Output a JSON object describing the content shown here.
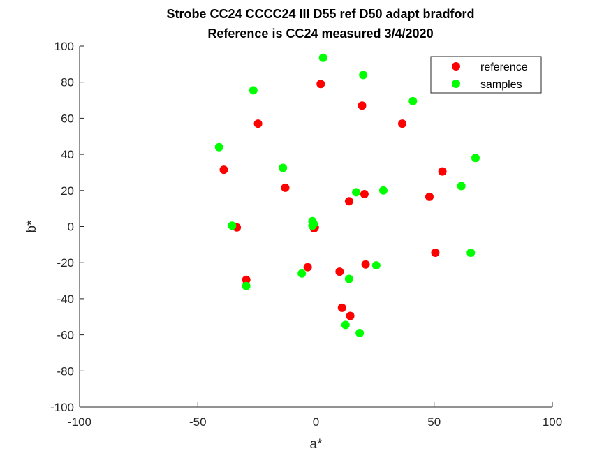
{
  "chart_data": {
    "type": "scatter",
    "title": "Strobe CC24 CCCC24 III D55 ref D50 adapt bradford",
    "subtitle": "Reference is CC24 measured 3/4/2020",
    "xlabel": "a*",
    "ylabel": "b*",
    "xlim": [
      -100,
      100
    ],
    "ylim": [
      -100,
      100
    ],
    "xticks": [
      -100,
      -50,
      0,
      50,
      100
    ],
    "yticks": [
      -100,
      -80,
      -60,
      -40,
      -20,
      0,
      20,
      40,
      60,
      80,
      100
    ],
    "grid": false,
    "legend_position": "top-right",
    "series": [
      {
        "name": "reference",
        "color": "#ff0000",
        "points": [
          [
            2,
            79
          ],
          [
            19.5,
            67
          ],
          [
            -24.5,
            57
          ],
          [
            36.5,
            57
          ],
          [
            -39,
            31.5
          ],
          [
            53.5,
            30.5
          ],
          [
            -13,
            21.5
          ],
          [
            48,
            16.5
          ],
          [
            20.5,
            18
          ],
          [
            14,
            14
          ],
          [
            -33.5,
            -0.5
          ],
          [
            -0.5,
            -0.5
          ],
          [
            -0.8,
            -1
          ],
          [
            50.5,
            -14.5
          ],
          [
            21,
            -21
          ],
          [
            -3.5,
            -22.5
          ],
          [
            10,
            -25
          ],
          [
            -29.5,
            -29.5
          ],
          [
            11,
            -45
          ],
          [
            14.5,
            -49.5
          ]
        ]
      },
      {
        "name": "samples",
        "color": "#00ff00",
        "points": [
          [
            3,
            93.5
          ],
          [
            20,
            84
          ],
          [
            -26.5,
            75.5
          ],
          [
            41,
            69.5
          ],
          [
            -41,
            44
          ],
          [
            67.5,
            38
          ],
          [
            -14,
            32.5
          ],
          [
            61.5,
            22.5
          ],
          [
            28.5,
            20
          ],
          [
            17,
            19
          ],
          [
            -35.5,
            0.5
          ],
          [
            -1.5,
            3
          ],
          [
            -1,
            1.5
          ],
          [
            -1.5,
            0.5
          ],
          [
            65.5,
            -14.5
          ],
          [
            25.5,
            -21.5
          ],
          [
            -6,
            -26
          ],
          [
            14,
            -29
          ],
          [
            -29.5,
            -33
          ],
          [
            12.5,
            -54.5
          ],
          [
            18.5,
            -59
          ]
        ]
      }
    ]
  }
}
